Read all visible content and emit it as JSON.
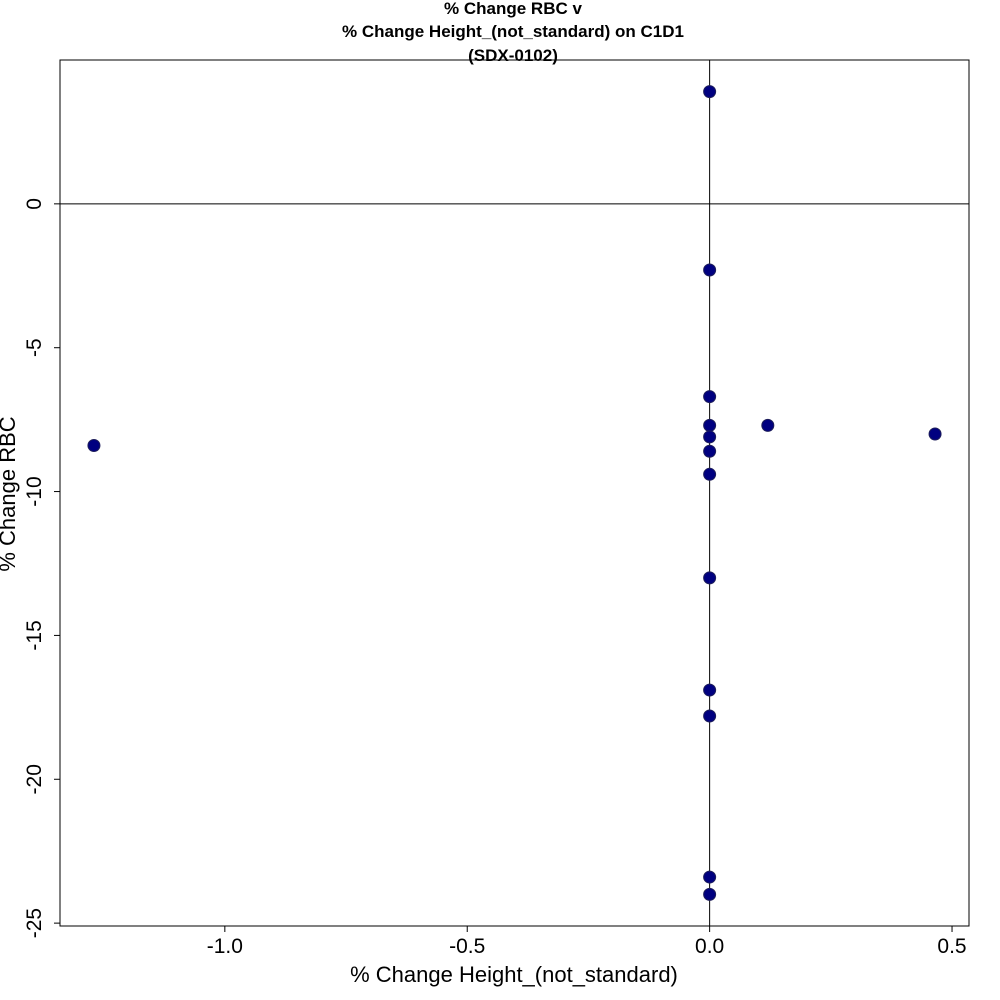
{
  "chart_data": {
    "type": "scatter",
    "title": [
      "% Change RBC v",
      "% Change Height_(not_standard) on C1D1",
      "(SDX-0102)"
    ],
    "xlabel": "% Change Height_(not_standard)",
    "ylabel": "% Change RBC",
    "xlim": [
      -1.34,
      0.535
    ],
    "ylim": [
      -25.1,
      5.0
    ],
    "xticks": [
      -1.0,
      -0.5,
      0.0,
      0.5
    ],
    "xtick_labels": [
      "-1.0",
      "-0.5",
      "0.0",
      "0.5"
    ],
    "yticks": [
      0,
      -5,
      -10,
      -15,
      -20,
      -25
    ],
    "ytick_labels": [
      "0",
      "-5",
      "-10",
      "-15",
      "-20",
      "-25"
    ],
    "reference_lines": {
      "x": 0,
      "y": 0
    },
    "grid": false,
    "marker_color": "#000080",
    "points": [
      {
        "x": 0.0,
        "y": 3.9
      },
      {
        "x": 0.0,
        "y": -2.3
      },
      {
        "x": 0.0,
        "y": -6.7
      },
      {
        "x": 0.0,
        "y": -7.7
      },
      {
        "x": 0.0,
        "y": -8.1
      },
      {
        "x": 0.0,
        "y": -8.6
      },
      {
        "x": 0.0,
        "y": -9.4
      },
      {
        "x": 0.0,
        "y": -13.0
      },
      {
        "x": 0.0,
        "y": -16.9
      },
      {
        "x": 0.0,
        "y": -17.8
      },
      {
        "x": 0.0,
        "y": -23.4
      },
      {
        "x": 0.0,
        "y": -24.0
      },
      {
        "x": -1.27,
        "y": -8.4
      },
      {
        "x": 0.12,
        "y": -7.7
      },
      {
        "x": 0.465,
        "y": -8.0
      }
    ]
  }
}
